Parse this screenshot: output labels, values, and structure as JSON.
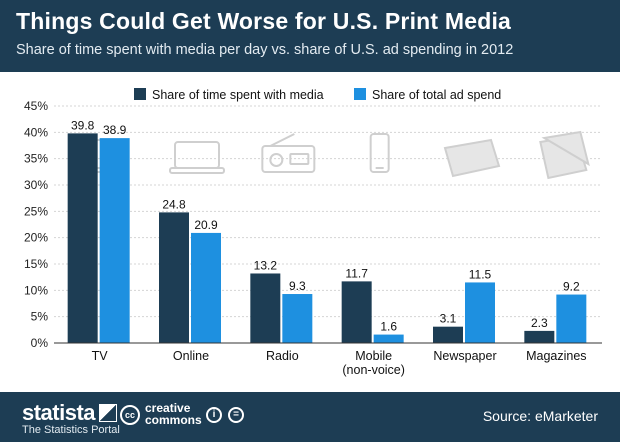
{
  "header": {
    "title": "Things Could Get Worse for U.S. Print Media",
    "subtitle": "Share of time spent with media per day vs. share of U.S. ad spending in 2012"
  },
  "chart_data": {
    "type": "bar",
    "categories": [
      "TV",
      "Online",
      "Radio",
      "Mobile\n(non-voice)",
      "Newspaper",
      "Magazines"
    ],
    "series": [
      {
        "name": "Share of time spent with media",
        "values": [
          39.8,
          24.8,
          13.2,
          11.7,
          3.1,
          2.3
        ],
        "color": "#1d3d54"
      },
      {
        "name": "Share of total ad spend",
        "values": [
          38.9,
          20.9,
          9.3,
          1.6,
          11.5,
          9.2
        ],
        "color": "#1e90e0"
      }
    ],
    "ylim": [
      0,
      45
    ],
    "yticks": [
      "0%",
      "5%",
      "10%",
      "15%",
      "20%",
      "25%",
      "30%",
      "35%",
      "40%",
      "45%"
    ],
    "legend": "top",
    "grid": true,
    "icons": [
      "tv-icon",
      "laptop-icon",
      "radio-icon",
      "smartphone-icon",
      "newspaper-icon",
      "magazine-icon"
    ]
  },
  "footer": {
    "brand": "statista",
    "portal": "The Statistics Portal",
    "cc_line1": "creative",
    "cc_line2": "commons",
    "source": "Source: eMarketer"
  }
}
